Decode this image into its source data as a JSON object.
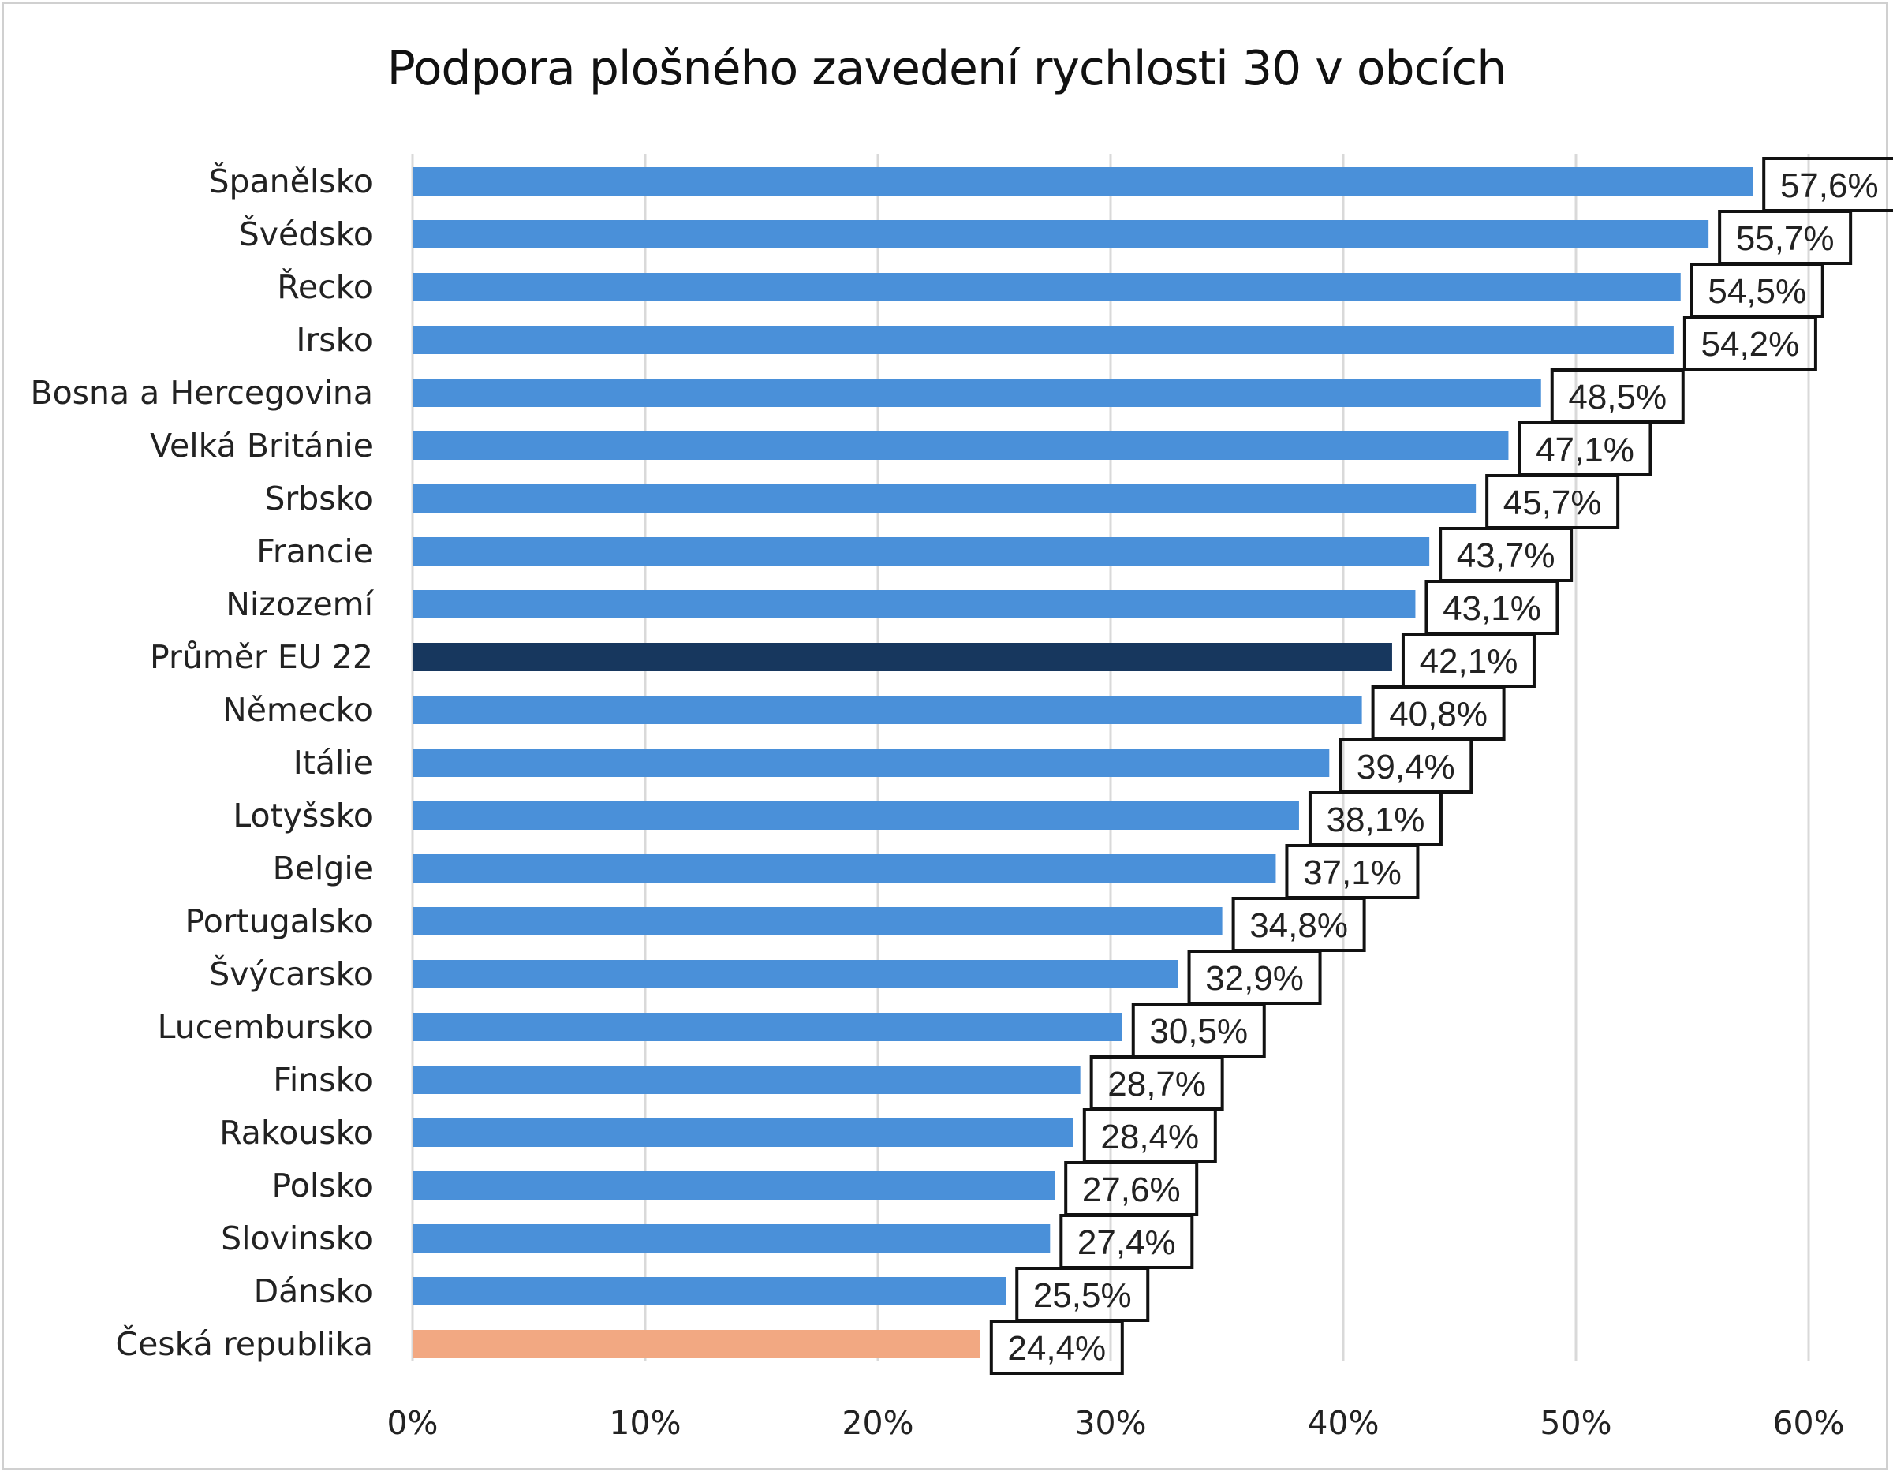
{
  "chart_data": {
    "type": "bar",
    "orientation": "horizontal",
    "title": "Podpora plošného zavedení rychlosti 30 v obcích",
    "categories": [
      "Španělsko",
      "Švédsko",
      "Řecko",
      "Irsko",
      "Bosna a Hercegovina",
      "Velká Británie",
      "Srbsko",
      "Francie",
      "Nizozemí",
      "Průměr EU 22",
      "Německo",
      "Itálie",
      "Lotyšsko",
      "Belgie",
      "Portugalsko",
      "Švýcarsko",
      "Lucembursko",
      "Finsko",
      "Rakousko",
      "Polsko",
      "Slovinsko",
      "Dánsko",
      "Česká republika"
    ],
    "values": [
      57.6,
      55.7,
      54.5,
      54.2,
      48.5,
      47.1,
      45.7,
      43.7,
      43.1,
      42.1,
      40.8,
      39.4,
      38.1,
      37.1,
      34.8,
      32.9,
      30.5,
      28.7,
      28.4,
      27.6,
      27.4,
      25.5,
      24.4
    ],
    "data_labels": [
      "57,6%",
      "55,7%",
      "54,5%",
      "54,2%",
      "48,5%",
      "47,1%",
      "45,7%",
      "43,7%",
      "43,1%",
      "42,1%",
      "40,8%",
      "39,4%",
      "38,1%",
      "37,1%",
      "34,8%",
      "32,9%",
      "30,5%",
      "28,7%",
      "28,4%",
      "27,6%",
      "27,4%",
      "25,5%",
      "24,4%"
    ],
    "xlim": [
      0,
      60
    ],
    "xticks": [
      "0%",
      "10%",
      "20%",
      "30%",
      "40%",
      "50%",
      "60%"
    ],
    "xlabel": "",
    "ylabel": "",
    "grid": "vertical",
    "legend": "none",
    "colors": {
      "default": "#4a90d9",
      "highlight_average": "#17375e",
      "highlight_czech": "#f2a882"
    },
    "highlight": {
      "Průměr EU 22": "highlight_average",
      "Česká republika": "highlight_czech"
    }
  }
}
